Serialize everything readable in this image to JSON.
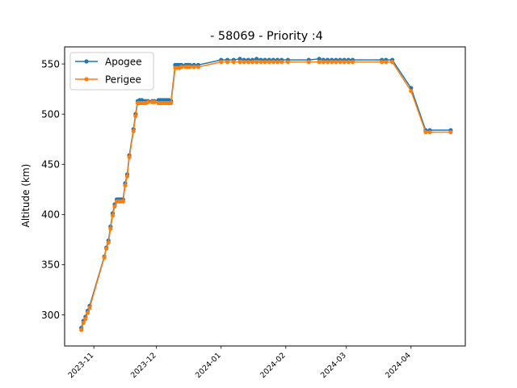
{
  "chart_data": {
    "type": "line",
    "title": "- 58069 - Priority :4",
    "xlabel": "",
    "ylabel": "Altitude (km)",
    "xlim": [
      "2023-10-18",
      "2024-04-27"
    ],
    "ylim": [
      269,
      567
    ],
    "x_ticks": [
      "2023-11",
      "2023-12",
      "2024-01",
      "2024-02",
      "2024-03",
      "2024-04"
    ],
    "y_ticks": [
      300,
      350,
      400,
      450,
      500,
      550
    ],
    "grid": false,
    "legend_position": "upper left",
    "series": [
      {
        "name": "Apogee",
        "color": "#1f77b4",
        "points": [
          [
            "2023-10-26",
            287
          ],
          [
            "2023-10-27",
            294
          ],
          [
            "2023-10-28",
            298
          ],
          [
            "2023-10-29",
            304
          ],
          [
            "2023-10-30",
            309
          ],
          [
            "2023-11-06",
            358
          ],
          [
            "2023-11-07",
            367
          ],
          [
            "2023-11-08",
            374
          ],
          [
            "2023-11-09",
            388
          ],
          [
            "2023-11-10",
            401
          ],
          [
            "2023-11-11",
            410
          ],
          [
            "2023-11-12",
            415
          ],
          [
            "2023-11-13",
            415
          ],
          [
            "2023-11-14",
            415
          ],
          [
            "2023-11-15",
            415
          ],
          [
            "2023-11-16",
            431
          ],
          [
            "2023-11-17",
            440
          ],
          [
            "2023-11-18",
            459
          ],
          [
            "2023-11-20",
            485
          ],
          [
            "2023-11-21",
            500
          ],
          [
            "2023-11-22",
            513
          ],
          [
            "2023-11-23",
            514
          ],
          [
            "2023-11-24",
            514
          ],
          [
            "2023-11-25",
            513
          ],
          [
            "2023-11-26",
            513
          ],
          [
            "2023-11-27",
            513
          ],
          [
            "2023-11-29",
            513
          ],
          [
            "2023-11-30",
            513
          ],
          [
            "2023-12-02",
            514
          ],
          [
            "2023-12-03",
            514
          ],
          [
            "2023-12-04",
            514
          ],
          [
            "2023-12-05",
            514
          ],
          [
            "2023-12-06",
            514
          ],
          [
            "2023-12-07",
            514
          ],
          [
            "2023-12-08",
            513
          ],
          [
            "2023-12-10",
            549
          ],
          [
            "2023-12-11",
            549
          ],
          [
            "2023-12-12",
            549
          ],
          [
            "2023-12-13",
            549
          ],
          [
            "2023-12-15",
            549
          ],
          [
            "2023-12-16",
            549
          ],
          [
            "2023-12-17",
            549
          ],
          [
            "2023-12-19",
            549
          ],
          [
            "2023-12-21",
            549
          ],
          [
            "2024-01-01",
            554
          ],
          [
            "2024-01-04",
            554
          ],
          [
            "2024-01-07",
            554
          ],
          [
            "2024-01-10",
            555
          ],
          [
            "2024-01-12",
            554
          ],
          [
            "2024-01-14",
            554
          ],
          [
            "2024-01-16",
            554
          ],
          [
            "2024-01-18",
            555
          ],
          [
            "2024-01-20",
            554
          ],
          [
            "2024-01-22",
            554
          ],
          [
            "2024-01-24",
            554
          ],
          [
            "2024-01-26",
            554
          ],
          [
            "2024-01-28",
            554
          ],
          [
            "2024-01-30",
            554
          ],
          [
            "2024-02-02",
            554
          ],
          [
            "2024-02-12",
            554
          ],
          [
            "2024-02-17",
            555
          ],
          [
            "2024-02-19",
            554
          ],
          [
            "2024-02-21",
            554
          ],
          [
            "2024-02-23",
            554
          ],
          [
            "2024-02-25",
            554
          ],
          [
            "2024-02-27",
            554
          ],
          [
            "2024-02-29",
            554
          ],
          [
            "2024-03-02",
            554
          ],
          [
            "2024-03-04",
            554
          ],
          [
            "2024-03-18",
            554
          ],
          [
            "2024-03-20",
            554
          ],
          [
            "2024-03-23",
            554
          ],
          [
            "2024-04-01",
            526
          ],
          [
            "2024-04-08",
            484
          ],
          [
            "2024-04-10",
            484
          ],
          [
            "2024-04-20",
            484
          ]
        ]
      },
      {
        "name": "Perigee",
        "color": "#ff7f0e",
        "points": [
          [
            "2023-10-26",
            285
          ],
          [
            "2023-10-27",
            292
          ],
          [
            "2023-10-28",
            296
          ],
          [
            "2023-10-29",
            302
          ],
          [
            "2023-10-30",
            307
          ],
          [
            "2023-11-06",
            357
          ],
          [
            "2023-11-07",
            366
          ],
          [
            "2023-11-08",
            372
          ],
          [
            "2023-11-09",
            386
          ],
          [
            "2023-11-10",
            399
          ],
          [
            "2023-11-11",
            408
          ],
          [
            "2023-11-12",
            413
          ],
          [
            "2023-11-13",
            413
          ],
          [
            "2023-11-14",
            413
          ],
          [
            "2023-11-15",
            413
          ],
          [
            "2023-11-16",
            429
          ],
          [
            "2023-11-17",
            438
          ],
          [
            "2023-11-18",
            457
          ],
          [
            "2023-11-20",
            483
          ],
          [
            "2023-11-21",
            498
          ],
          [
            "2023-11-22",
            511
          ],
          [
            "2023-11-23",
            511
          ],
          [
            "2023-11-24",
            511
          ],
          [
            "2023-11-25",
            511
          ],
          [
            "2023-11-26",
            511
          ],
          [
            "2023-11-27",
            512
          ],
          [
            "2023-11-29",
            512
          ],
          [
            "2023-11-30",
            512
          ],
          [
            "2023-12-02",
            511
          ],
          [
            "2023-12-03",
            511
          ],
          [
            "2023-12-04",
            511
          ],
          [
            "2023-12-05",
            511
          ],
          [
            "2023-12-06",
            511
          ],
          [
            "2023-12-07",
            511
          ],
          [
            "2023-12-08",
            511
          ],
          [
            "2023-12-10",
            546
          ],
          [
            "2023-12-11",
            546
          ],
          [
            "2023-12-12",
            546
          ],
          [
            "2023-12-13",
            547
          ],
          [
            "2023-12-15",
            547
          ],
          [
            "2023-12-16",
            547
          ],
          [
            "2023-12-17",
            547
          ],
          [
            "2023-12-19",
            547
          ],
          [
            "2023-12-21",
            547
          ],
          [
            "2024-01-01",
            552
          ],
          [
            "2024-01-04",
            552
          ],
          [
            "2024-01-07",
            552
          ],
          [
            "2024-01-10",
            552
          ],
          [
            "2024-01-12",
            552
          ],
          [
            "2024-01-14",
            552
          ],
          [
            "2024-01-16",
            552
          ],
          [
            "2024-01-18",
            552
          ],
          [
            "2024-01-20",
            552
          ],
          [
            "2024-01-22",
            552
          ],
          [
            "2024-01-24",
            552
          ],
          [
            "2024-01-26",
            552
          ],
          [
            "2024-01-28",
            552
          ],
          [
            "2024-01-30",
            552
          ],
          [
            "2024-02-02",
            552
          ],
          [
            "2024-02-12",
            552
          ],
          [
            "2024-02-17",
            552
          ],
          [
            "2024-02-19",
            552
          ],
          [
            "2024-02-21",
            552
          ],
          [
            "2024-02-23",
            552
          ],
          [
            "2024-02-25",
            552
          ],
          [
            "2024-02-27",
            552
          ],
          [
            "2024-02-29",
            552
          ],
          [
            "2024-03-02",
            552
          ],
          [
            "2024-03-04",
            552
          ],
          [
            "2024-03-18",
            552
          ],
          [
            "2024-03-20",
            552
          ],
          [
            "2024-03-23",
            552
          ],
          [
            "2024-04-01",
            523
          ],
          [
            "2024-04-08",
            482
          ],
          [
            "2024-04-10",
            482
          ],
          [
            "2024-04-20",
            482
          ]
        ]
      }
    ]
  }
}
